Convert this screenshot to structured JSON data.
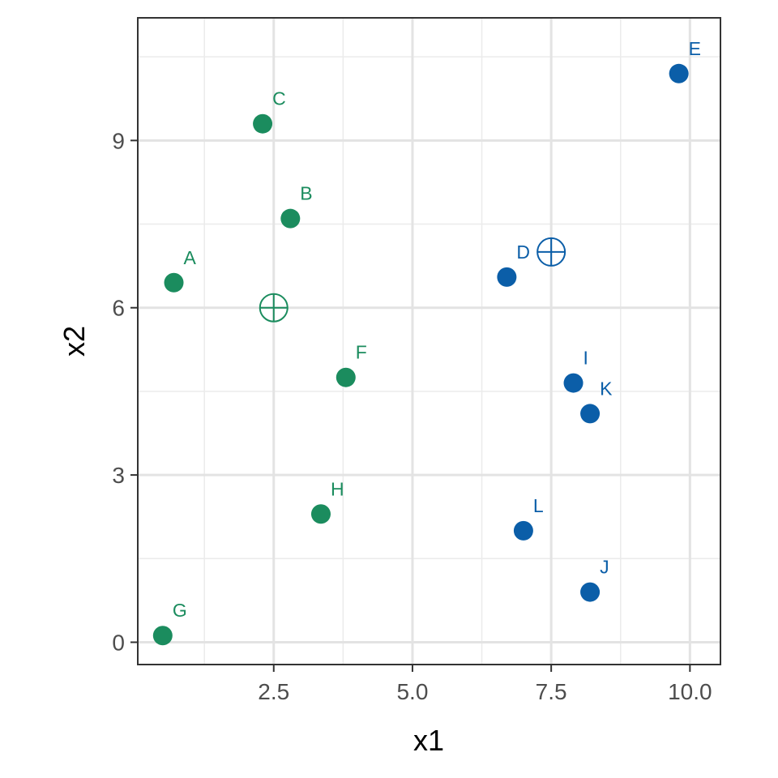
{
  "chart_data": {
    "type": "scatter",
    "xlabel": "x1",
    "ylabel": "x2",
    "xlim": [
      0.05,
      10.55
    ],
    "ylim": [
      -0.4,
      11.2
    ],
    "x_ticks": [
      2.5,
      5.0,
      7.5,
      10.0
    ],
    "x_tick_labels": [
      "2.5",
      "5.0",
      "7.5",
      "10.0"
    ],
    "x_minor_ticks": [
      1.25,
      3.75,
      6.25,
      8.75
    ],
    "y_ticks": [
      0,
      3,
      6,
      9
    ],
    "y_tick_labels": [
      "0",
      "3",
      "6",
      "9"
    ],
    "y_minor_ticks": [
      1.5,
      4.5,
      7.5,
      10.5
    ],
    "grid": true,
    "legend": "none",
    "series": [
      {
        "color": "#1b8c5e",
        "points": [
          {
            "label": "A",
            "x": 0.7,
            "y": 6.45
          },
          {
            "label": "B",
            "x": 2.8,
            "y": 7.6
          },
          {
            "label": "C",
            "x": 2.3,
            "y": 9.3
          },
          {
            "label": "F",
            "x": 3.8,
            "y": 4.75
          },
          {
            "label": "G",
            "x": 0.5,
            "y": 0.12
          },
          {
            "label": "H",
            "x": 3.35,
            "y": 2.3
          }
        ],
        "centroid": {
          "x": 2.5,
          "y": 6.0
        }
      },
      {
        "color": "#0b5ea8",
        "points": [
          {
            "label": "D",
            "x": 6.7,
            "y": 6.55
          },
          {
            "label": "E",
            "x": 9.8,
            "y": 10.2
          },
          {
            "label": "I",
            "x": 7.9,
            "y": 4.65
          },
          {
            "label": "J",
            "x": 8.2,
            "y": 0.9
          },
          {
            "label": "K",
            "x": 8.2,
            "y": 4.1
          },
          {
            "label": "L",
            "x": 7.0,
            "y": 2.0
          }
        ],
        "centroid": {
          "x": 7.5,
          "y": 7.0
        }
      }
    ]
  }
}
